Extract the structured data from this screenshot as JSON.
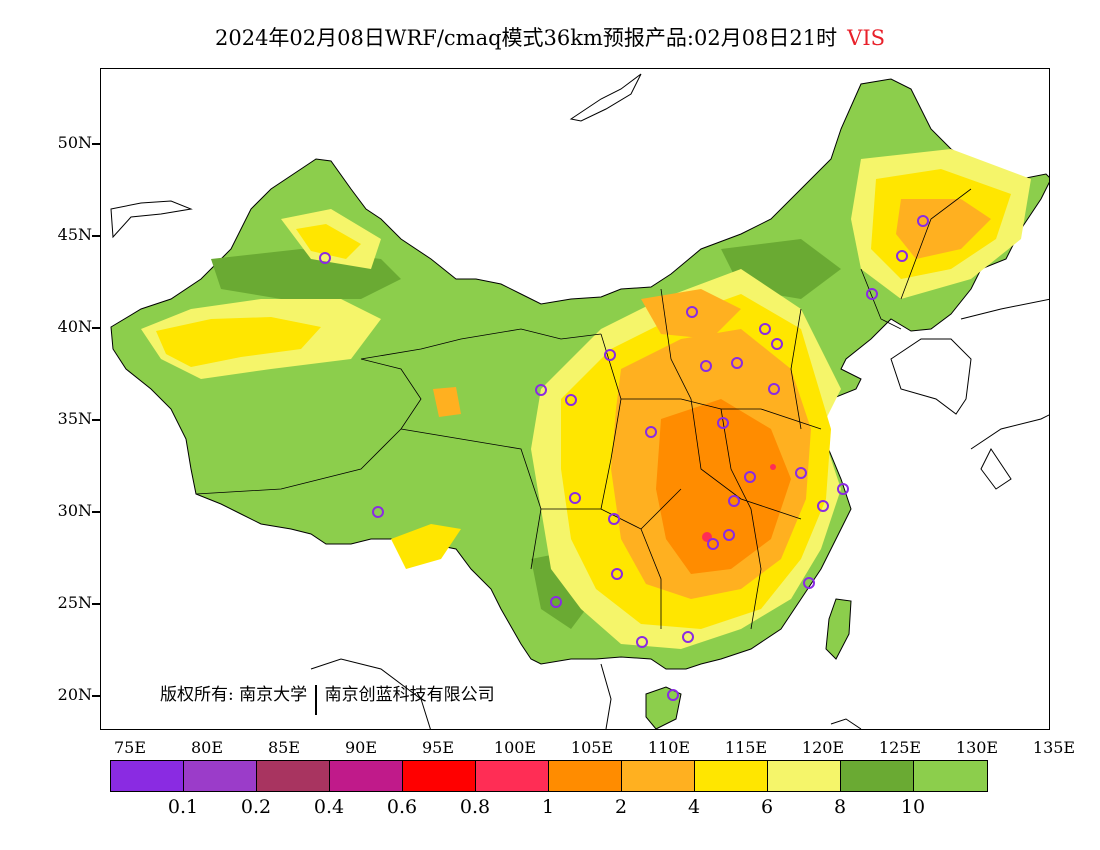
{
  "title": {
    "main": "2024年02月08日WRF/cmaq模式36km预报产品:02月08日21时",
    "variable": "VIS"
  },
  "axes": {
    "lat_labels": [
      "50N",
      "45N",
      "40N",
      "35N",
      "30N",
      "25N",
      "20N"
    ],
    "lon_labels": [
      "75E",
      "80E",
      "85E",
      "90E",
      "95E",
      "100E",
      "105E",
      "110E",
      "115E",
      "120E",
      "125E",
      "130E",
      "135E"
    ]
  },
  "copyright": {
    "prefix": "版权所有:",
    "org1": "南京大学",
    "org2": "南京创蓝科技有限公司"
  },
  "colorbar": {
    "colors": [
      "#8a2be2",
      "#9b3cc9",
      "#a83460",
      "#c01a8a",
      "#ff0000",
      "#ff2d55",
      "#ff8c00",
      "#ffb020",
      "#ffe600",
      "#f5f56a",
      "#6aaa33",
      "#8cce4c"
    ],
    "labels": [
      "0.1",
      "0.2",
      "0.4",
      "0.6",
      "0.8",
      "1",
      "2",
      "4",
      "6",
      "8",
      "10"
    ]
  },
  "stations_count_note": ""
}
